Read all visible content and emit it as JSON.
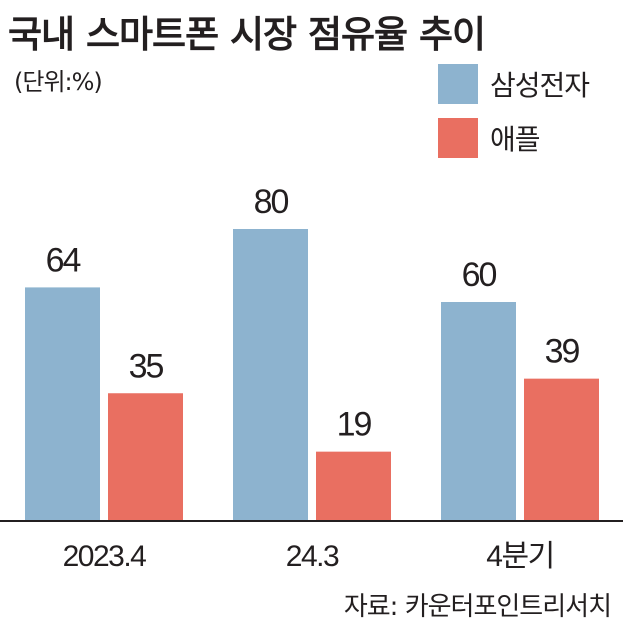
{
  "title": "국내 스마트폰 시장 점유율 추이",
  "unit": "(단위:%)",
  "source": "자료: 카운터포인트리서치",
  "colors": {
    "samsung": "#8db3cf",
    "apple": "#e96f61",
    "axis": "#231f20",
    "text": "#231f20"
  },
  "chart_data": {
    "type": "bar",
    "categories": [
      "2023.4",
      "24.3",
      "4분기"
    ],
    "series": [
      {
        "name": "삼성전자",
        "values": [
          64,
          80,
          60
        ]
      },
      {
        "name": "애플",
        "values": [
          35,
          19,
          39
        ]
      }
    ],
    "title": "국내 스마트폰 시장 점유율 추이",
    "xlabel": "",
    "ylabel": "",
    "ylim": [
      0,
      80
    ],
    "grid": false,
    "legend": "top-right"
  }
}
